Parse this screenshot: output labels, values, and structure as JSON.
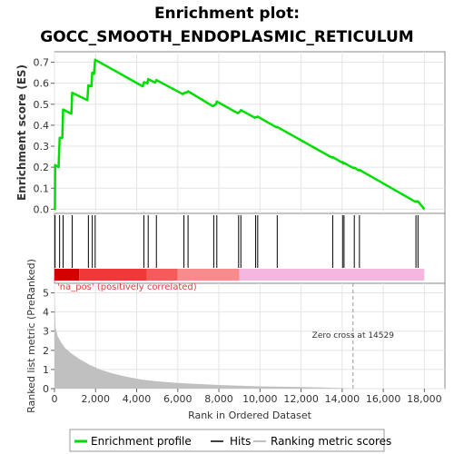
{
  "chart_data": {
    "type": "line",
    "title_line1": "Enrichment plot:",
    "title_line2": "GOCC_SMOOTH_ENDOPLASMIC_RETICULUM",
    "xlabel": "Rank in Ordered Dataset",
    "ylabel_top": "Enrichment score (ES)",
    "ylabel_bottom": "Ranked list metric (PreRanked)",
    "xlim": [
      0,
      19000
    ],
    "x_ticks": [
      "0",
      "2,000",
      "4,000",
      "6,000",
      "8,000",
      "10,000",
      "12,000",
      "14,000",
      "16,000",
      "18,000"
    ],
    "es_ylim": [
      -0.02,
      0.75
    ],
    "es_ticks": [
      "0.0",
      "0.1",
      "0.2",
      "0.3",
      "0.4",
      "0.5",
      "0.6",
      "0.7"
    ],
    "metric_ylim": [
      0,
      5.5
    ],
    "metric_ticks": [
      "0",
      "1",
      "2",
      "3",
      "4",
      "5"
    ],
    "grid": true,
    "series": [
      {
        "name": "Enrichment profile",
        "color": "#00dd00",
        "x": [
          0,
          20,
          30,
          200,
          250,
          380,
          420,
          820,
          860,
          1600,
          1650,
          1800,
          1840,
          1920,
          1980,
          4300,
          4350,
          4520,
          4560,
          4900,
          4960,
          6250,
          6300,
          6450,
          6500,
          7700,
          7750,
          7850,
          7900,
          8920,
          8960,
          9030,
          9070,
          9750,
          9790,
          9850,
          9890,
          10800,
          10840,
          13500,
          13540,
          13980,
          14020,
          14050,
          14090,
          14550,
          14590,
          14800,
          14840,
          17550,
          17590,
          17650,
          17690,
          18000
        ],
        "y": [
          0.0,
          0.0,
          0.21,
          0.2,
          0.34,
          0.34,
          0.475,
          0.455,
          0.555,
          0.52,
          0.59,
          0.585,
          0.65,
          0.645,
          0.712,
          0.585,
          0.605,
          0.6,
          0.62,
          0.603,
          0.615,
          0.548,
          0.553,
          0.557,
          0.562,
          0.491,
          0.493,
          0.5,
          0.513,
          0.457,
          0.46,
          0.466,
          0.472,
          0.436,
          0.438,
          0.439,
          0.441,
          0.39,
          0.392,
          0.246,
          0.248,
          0.223,
          0.225,
          0.218,
          0.22,
          0.196,
          0.198,
          0.185,
          0.187,
          0.036,
          0.038,
          0.035,
          0.037,
          0.0
        ]
      },
      {
        "name": "Hits",
        "color": "#000000",
        "x": [
          30,
          250,
          420,
          860,
          1650,
          1840,
          1980,
          4350,
          4560,
          4960,
          6300,
          6500,
          7750,
          7900,
          8960,
          9070,
          9790,
          9890,
          10840,
          13540,
          14020,
          14090,
          14590,
          14840,
          17590,
          17690
        ]
      },
      {
        "name": "Ranking metric scores",
        "color": "#c0c0c0",
        "x": [
          0,
          50,
          150,
          300,
          500,
          800,
          1200,
          1700,
          2200,
          2800,
          3500,
          4200,
          5000,
          6000,
          7000,
          8000,
          9000,
          10000,
          11000,
          12000,
          13000,
          14000,
          14529,
          15000,
          16000,
          17000,
          18000
        ],
        "y": [
          5.2,
          3.2,
          2.75,
          2.45,
          2.15,
          1.85,
          1.55,
          1.25,
          1.0,
          0.8,
          0.62,
          0.48,
          0.38,
          0.3,
          0.24,
          0.19,
          0.15,
          0.12,
          0.1,
          0.08,
          0.06,
          0.03,
          0.0,
          0.0,
          0.0,
          0.0,
          0.0
        ]
      }
    ],
    "annotations": {
      "zero_cross": "Zero cross at 14529",
      "zero_cross_x": 14529,
      "positive_label": "'na_pos' (positively correlated)"
    },
    "heat_bar": {
      "segments": [
        {
          "from": 0,
          "to": 1200,
          "color": "#d40000"
        },
        {
          "from": 1200,
          "to": 4500,
          "color": "#f03838"
        },
        {
          "from": 4500,
          "to": 6000,
          "color": "#f45c5c"
        },
        {
          "from": 6000,
          "to": 9000,
          "color": "#f88c8c"
        },
        {
          "from": 9000,
          "to": 18000,
          "color": "#f4b8e0"
        }
      ]
    }
  },
  "legend": [
    {
      "label": "Enrichment profile",
      "color": "#00dd00"
    },
    {
      "label": "Hits",
      "color": "#000000"
    },
    {
      "label": "Ranking metric scores",
      "color": "#c0c0c0"
    }
  ]
}
